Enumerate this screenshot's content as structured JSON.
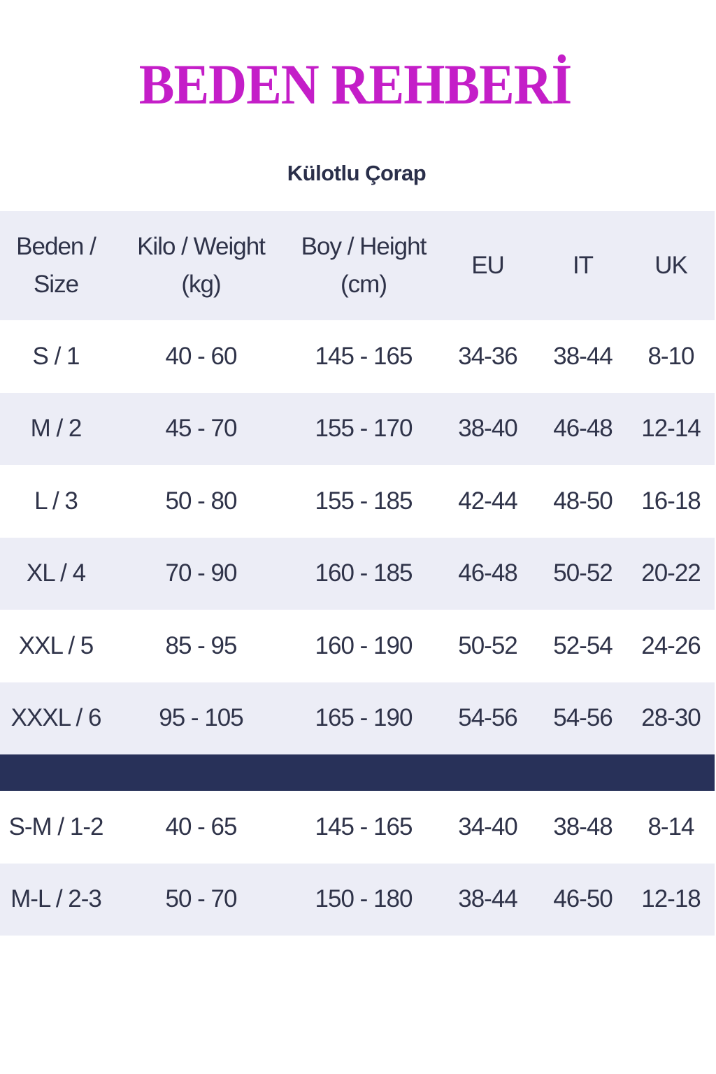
{
  "title": "BEDEN REHBERİ",
  "subtitle": "Külotlu Çorap",
  "colors": {
    "title": "#c41ec8",
    "divider": "#283159",
    "stripe": "#ecedf6",
    "text": "#2f3349"
  },
  "headers": [
    {
      "line1": "Beden /",
      "line2": "Size"
    },
    {
      "line1": "Kilo / Weight",
      "line2": "(kg)"
    },
    {
      "line1": "Boy / Height",
      "line2": "(cm)"
    },
    {
      "line1": "EU",
      "line2": ""
    },
    {
      "line1": "IT",
      "line2": ""
    },
    {
      "line1": "UK",
      "line2": ""
    }
  ],
  "rows": [
    [
      "S / 1",
      "40 - 60",
      "145 - 165",
      "34-36",
      "38-44",
      "8-10"
    ],
    [
      "M / 2",
      "45 - 70",
      "155 - 170",
      "38-40",
      "46-48",
      "12-14"
    ],
    [
      "L / 3",
      "50 - 80",
      "155 - 185",
      "42-44",
      "48-50",
      "16-18"
    ],
    [
      "XL / 4",
      "70 - 90",
      "160 - 185",
      "46-48",
      "50-52",
      "20-22"
    ],
    [
      "XXL / 5",
      "85 - 95",
      "160 - 190",
      "50-52",
      "52-54",
      "24-26"
    ],
    [
      "XXXL / 6",
      "95 - 105",
      "165 - 190",
      "54-56",
      "54-56",
      "28-30"
    ]
  ],
  "combo_rows": [
    [
      "S-M / 1-2",
      "40 - 65",
      "145 - 165",
      "34-40",
      "38-48",
      "8-14"
    ],
    [
      "M-L / 2-3",
      "50 - 70",
      "150 - 180",
      "38-44",
      "46-50",
      "12-18"
    ]
  ]
}
